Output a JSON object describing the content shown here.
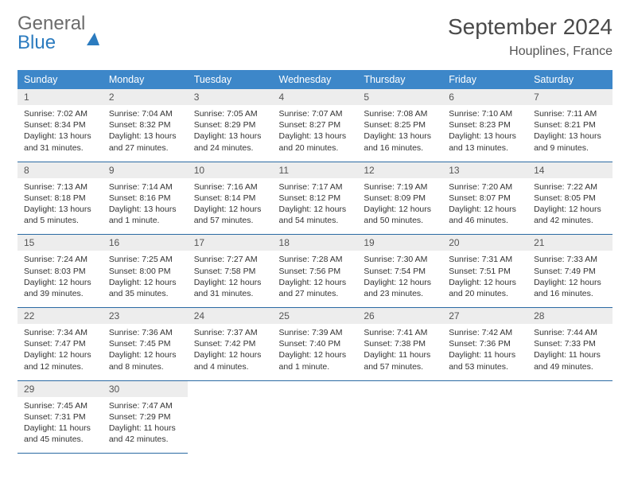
{
  "logo": {
    "part1": "General",
    "part2": "Blue"
  },
  "header": {
    "monthTitle": "September 2024",
    "location": "Houplines, France"
  },
  "colors": {
    "headerBg": "#3d87c9",
    "headerText": "#ffffff",
    "dayNumBg": "#ededed",
    "rowBorder": "#2b6aa3",
    "logoBlue": "#2b7bbf",
    "logoGray": "#6b6b6b"
  },
  "dayNames": [
    "Sunday",
    "Monday",
    "Tuesday",
    "Wednesday",
    "Thursday",
    "Friday",
    "Saturday"
  ],
  "weeks": [
    [
      {
        "n": "1",
        "sr": "7:02 AM",
        "ss": "8:34 PM",
        "dl": "13 hours and 31 minutes."
      },
      {
        "n": "2",
        "sr": "7:04 AM",
        "ss": "8:32 PM",
        "dl": "13 hours and 27 minutes."
      },
      {
        "n": "3",
        "sr": "7:05 AM",
        "ss": "8:29 PM",
        "dl": "13 hours and 24 minutes."
      },
      {
        "n": "4",
        "sr": "7:07 AM",
        "ss": "8:27 PM",
        "dl": "13 hours and 20 minutes."
      },
      {
        "n": "5",
        "sr": "7:08 AM",
        "ss": "8:25 PM",
        "dl": "13 hours and 16 minutes."
      },
      {
        "n": "6",
        "sr": "7:10 AM",
        "ss": "8:23 PM",
        "dl": "13 hours and 13 minutes."
      },
      {
        "n": "7",
        "sr": "7:11 AM",
        "ss": "8:21 PM",
        "dl": "13 hours and 9 minutes."
      }
    ],
    [
      {
        "n": "8",
        "sr": "7:13 AM",
        "ss": "8:18 PM",
        "dl": "13 hours and 5 minutes."
      },
      {
        "n": "9",
        "sr": "7:14 AM",
        "ss": "8:16 PM",
        "dl": "13 hours and 1 minute."
      },
      {
        "n": "10",
        "sr": "7:16 AM",
        "ss": "8:14 PM",
        "dl": "12 hours and 57 minutes."
      },
      {
        "n": "11",
        "sr": "7:17 AM",
        "ss": "8:12 PM",
        "dl": "12 hours and 54 minutes."
      },
      {
        "n": "12",
        "sr": "7:19 AM",
        "ss": "8:09 PM",
        "dl": "12 hours and 50 minutes."
      },
      {
        "n": "13",
        "sr": "7:20 AM",
        "ss": "8:07 PM",
        "dl": "12 hours and 46 minutes."
      },
      {
        "n": "14",
        "sr": "7:22 AM",
        "ss": "8:05 PM",
        "dl": "12 hours and 42 minutes."
      }
    ],
    [
      {
        "n": "15",
        "sr": "7:24 AM",
        "ss": "8:03 PM",
        "dl": "12 hours and 39 minutes."
      },
      {
        "n": "16",
        "sr": "7:25 AM",
        "ss": "8:00 PM",
        "dl": "12 hours and 35 minutes."
      },
      {
        "n": "17",
        "sr": "7:27 AM",
        "ss": "7:58 PM",
        "dl": "12 hours and 31 minutes."
      },
      {
        "n": "18",
        "sr": "7:28 AM",
        "ss": "7:56 PM",
        "dl": "12 hours and 27 minutes."
      },
      {
        "n": "19",
        "sr": "7:30 AM",
        "ss": "7:54 PM",
        "dl": "12 hours and 23 minutes."
      },
      {
        "n": "20",
        "sr": "7:31 AM",
        "ss": "7:51 PM",
        "dl": "12 hours and 20 minutes."
      },
      {
        "n": "21",
        "sr": "7:33 AM",
        "ss": "7:49 PM",
        "dl": "12 hours and 16 minutes."
      }
    ],
    [
      {
        "n": "22",
        "sr": "7:34 AM",
        "ss": "7:47 PM",
        "dl": "12 hours and 12 minutes."
      },
      {
        "n": "23",
        "sr": "7:36 AM",
        "ss": "7:45 PM",
        "dl": "12 hours and 8 minutes."
      },
      {
        "n": "24",
        "sr": "7:37 AM",
        "ss": "7:42 PM",
        "dl": "12 hours and 4 minutes."
      },
      {
        "n": "25",
        "sr": "7:39 AM",
        "ss": "7:40 PM",
        "dl": "12 hours and 1 minute."
      },
      {
        "n": "26",
        "sr": "7:41 AM",
        "ss": "7:38 PM",
        "dl": "11 hours and 57 minutes."
      },
      {
        "n": "27",
        "sr": "7:42 AM",
        "ss": "7:36 PM",
        "dl": "11 hours and 53 minutes."
      },
      {
        "n": "28",
        "sr": "7:44 AM",
        "ss": "7:33 PM",
        "dl": "11 hours and 49 minutes."
      }
    ],
    [
      {
        "n": "29",
        "sr": "7:45 AM",
        "ss": "7:31 PM",
        "dl": "11 hours and 45 minutes."
      },
      {
        "n": "30",
        "sr": "7:47 AM",
        "ss": "7:29 PM",
        "dl": "11 hours and 42 minutes."
      },
      null,
      null,
      null,
      null,
      null
    ]
  ],
  "labels": {
    "sunrise": "Sunrise:",
    "sunset": "Sunset:",
    "daylight": "Daylight:"
  }
}
